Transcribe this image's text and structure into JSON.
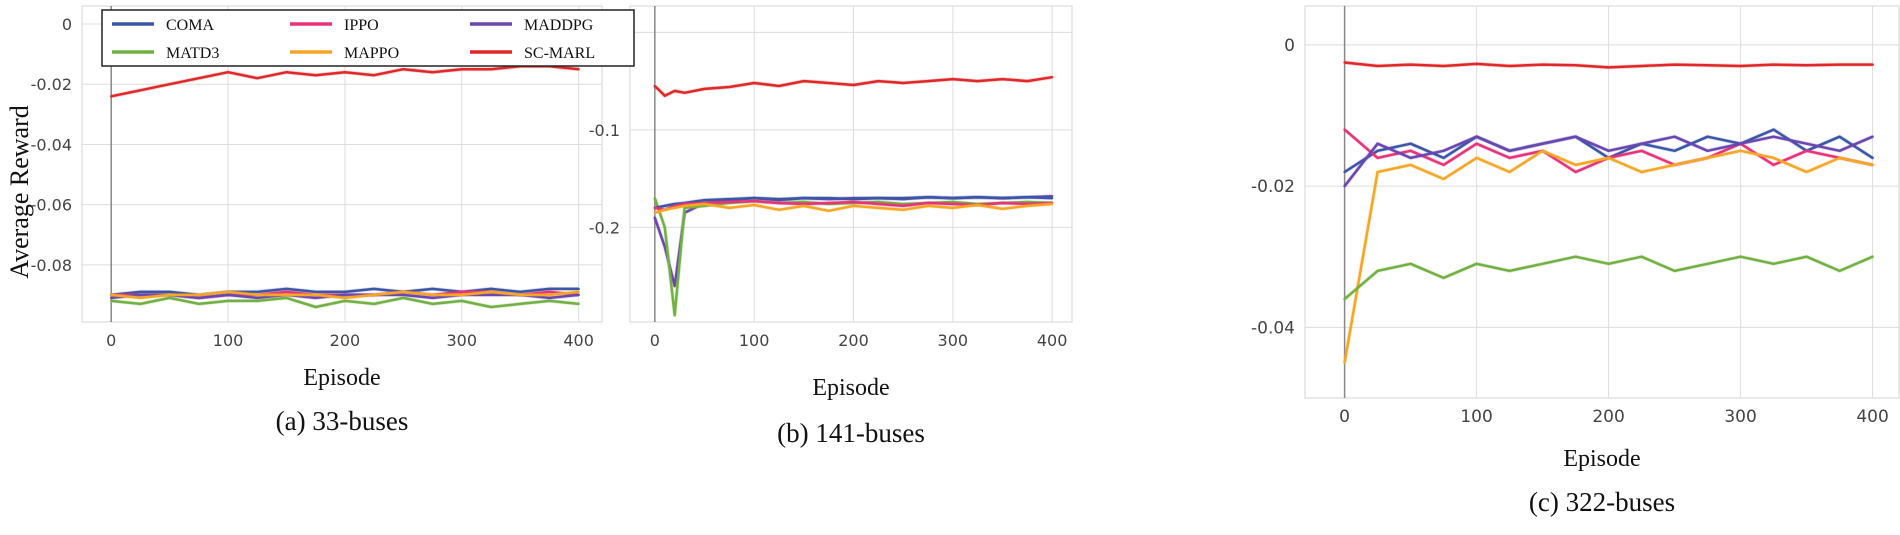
{
  "figure": {
    "ylabel": "Average Reward",
    "legend": {
      "placement": "top-left of panel (a)",
      "entries": [
        {
          "name": "COMA",
          "color": "#3a56a5"
        },
        {
          "name": "IPPO",
          "color": "#e8327a"
        },
        {
          "name": "MADDPG",
          "color": "#6a46b0"
        },
        {
          "name": "MATD3",
          "color": "#72b043"
        },
        {
          "name": "MAPPO",
          "color": "#f5a623"
        },
        {
          "name": "SC-MARL",
          "color": "#e02828"
        }
      ]
    }
  },
  "chart_data": [
    {
      "type": "line",
      "caption": "(a) 33-buses",
      "xlabel": "Episode",
      "ylabel": "Average Reward",
      "xlim": [
        -25,
        420
      ],
      "ylim": [
        -0.099,
        0.006
      ],
      "xticks": [
        0,
        100,
        200,
        300,
        400
      ],
      "yticks": [
        0,
        -0.02,
        -0.04,
        -0.06,
        -0.08
      ],
      "ytick_labels": [
        "0",
        "-0.02",
        "-0.04",
        "-0.06",
        "-0.08"
      ],
      "grid": true,
      "x": [
        0,
        25,
        50,
        75,
        100,
        125,
        150,
        175,
        200,
        225,
        250,
        275,
        300,
        325,
        350,
        375,
        400
      ],
      "series": [
        {
          "name": "SC-MARL",
          "color": "#e02828",
          "values": [
            -0.024,
            -0.022,
            -0.02,
            -0.018,
            -0.016,
            -0.018,
            -0.016,
            -0.017,
            -0.016,
            -0.017,
            -0.015,
            -0.016,
            -0.015,
            -0.015,
            -0.014,
            -0.014,
            -0.015
          ]
        },
        {
          "name": "COMA",
          "color": "#3a56a5",
          "values": [
            -0.09,
            -0.089,
            -0.089,
            -0.09,
            -0.089,
            -0.089,
            -0.088,
            -0.089,
            -0.089,
            -0.088,
            -0.089,
            -0.088,
            -0.089,
            -0.088,
            -0.089,
            -0.088,
            -0.088
          ]
        },
        {
          "name": "IPPO",
          "color": "#e8327a",
          "values": [
            -0.09,
            -0.09,
            -0.09,
            -0.091,
            -0.09,
            -0.09,
            -0.089,
            -0.09,
            -0.09,
            -0.09,
            -0.089,
            -0.09,
            -0.089,
            -0.089,
            -0.09,
            -0.089,
            -0.09
          ]
        },
        {
          "name": "MADDPG",
          "color": "#6a46b0",
          "values": [
            -0.091,
            -0.09,
            -0.09,
            -0.091,
            -0.09,
            -0.091,
            -0.09,
            -0.091,
            -0.09,
            -0.09,
            -0.09,
            -0.091,
            -0.09,
            -0.09,
            -0.09,
            -0.091,
            -0.09
          ]
        },
        {
          "name": "MAPPO",
          "color": "#f5a623",
          "values": [
            -0.09,
            -0.091,
            -0.09,
            -0.09,
            -0.089,
            -0.09,
            -0.09,
            -0.09,
            -0.091,
            -0.09,
            -0.089,
            -0.09,
            -0.09,
            -0.089,
            -0.09,
            -0.09,
            -0.089
          ]
        },
        {
          "name": "MATD3",
          "color": "#72b043",
          "values": [
            -0.092,
            -0.093,
            -0.091,
            -0.093,
            -0.092,
            -0.092,
            -0.091,
            -0.094,
            -0.092,
            -0.093,
            -0.091,
            -0.093,
            -0.092,
            -0.094,
            -0.093,
            -0.092,
            -0.093
          ]
        }
      ]
    },
    {
      "type": "line",
      "caption": "(b) 141-buses",
      "xlabel": "Episode",
      "ylabel": "",
      "xlim": [
        -25,
        420
      ],
      "ylim": [
        -0.297,
        0.027
      ],
      "xticks": [
        0,
        100,
        200,
        300,
        400
      ],
      "yticks": [
        0,
        -0.1,
        -0.2
      ],
      "ytick_labels": [
        "0",
        "-0.1",
        "-0.2"
      ],
      "grid": true,
      "x": [
        0,
        10,
        20,
        30,
        50,
        75,
        100,
        125,
        150,
        175,
        200,
        225,
        250,
        275,
        300,
        325,
        350,
        375,
        400
      ],
      "series": [
        {
          "name": "SC-MARL",
          "color": "#e02828",
          "values": [
            -0.055,
            -0.065,
            -0.06,
            -0.062,
            -0.058,
            -0.056,
            -0.052,
            -0.055,
            -0.05,
            -0.052,
            -0.054,
            -0.05,
            -0.052,
            -0.05,
            -0.048,
            -0.05,
            -0.048,
            -0.05,
            -0.046
          ]
        },
        {
          "name": "MADDPG",
          "color": "#6a46b0",
          "values": [
            -0.19,
            -0.22,
            -0.26,
            -0.185,
            -0.175,
            -0.172,
            -0.17,
            -0.172,
            -0.17,
            -0.171,
            -0.17,
            -0.17,
            -0.171,
            -0.169,
            -0.17,
            -0.169,
            -0.17,
            -0.169,
            -0.168
          ]
        },
        {
          "name": "MATD3",
          "color": "#72b043",
          "values": [
            -0.17,
            -0.2,
            -0.29,
            -0.18,
            -0.178,
            -0.175,
            -0.173,
            -0.175,
            -0.174,
            -0.176,
            -0.175,
            -0.174,
            -0.176,
            -0.175,
            -0.174,
            -0.176,
            -0.175,
            -0.174,
            -0.175
          ]
        },
        {
          "name": "COMA",
          "color": "#3a56a5",
          "values": [
            -0.18,
            -0.178,
            -0.176,
            -0.175,
            -0.172,
            -0.171,
            -0.17,
            -0.171,
            -0.17,
            -0.17,
            -0.171,
            -0.17,
            -0.17,
            -0.169,
            -0.17,
            -0.169,
            -0.17,
            -0.169,
            -0.17
          ]
        },
        {
          "name": "IPPO",
          "color": "#e8327a",
          "values": [
            -0.18,
            -0.182,
            -0.178,
            -0.176,
            -0.175,
            -0.174,
            -0.173,
            -0.175,
            -0.176,
            -0.175,
            -0.174,
            -0.176,
            -0.178,
            -0.175,
            -0.176,
            -0.177,
            -0.175,
            -0.176,
            -0.175
          ]
        },
        {
          "name": "MAPPO",
          "color": "#f5a623",
          "values": [
            -0.185,
            -0.182,
            -0.18,
            -0.178,
            -0.176,
            -0.18,
            -0.177,
            -0.182,
            -0.178,
            -0.183,
            -0.178,
            -0.18,
            -0.182,
            -0.178,
            -0.18,
            -0.177,
            -0.181,
            -0.178,
            -0.176
          ]
        }
      ]
    },
    {
      "type": "line",
      "caption": "(c) 322-buses",
      "xlabel": "Episode",
      "ylabel": "",
      "xlim": [
        -30,
        420
      ],
      "ylim": [
        -0.05,
        0.0055
      ],
      "xticks": [
        0,
        100,
        200,
        300,
        400
      ],
      "yticks": [
        0,
        -0.02,
        -0.04
      ],
      "ytick_labels": [
        "0",
        "-0.02",
        "-0.04"
      ],
      "grid": true,
      "x": [
        0,
        25,
        50,
        75,
        100,
        125,
        150,
        175,
        200,
        225,
        250,
        275,
        300,
        325,
        350,
        375,
        400
      ],
      "series": [
        {
          "name": "SC-MARL",
          "color": "#e02828",
          "values": [
            -0.0025,
            -0.003,
            -0.0028,
            -0.003,
            -0.0027,
            -0.003,
            -0.0028,
            -0.0029,
            -0.0032,
            -0.003,
            -0.0028,
            -0.0029,
            -0.003,
            -0.0028,
            -0.0029,
            -0.0028,
            -0.0028
          ]
        },
        {
          "name": "COMA",
          "color": "#3a56a5",
          "values": [
            -0.018,
            -0.015,
            -0.014,
            -0.016,
            -0.013,
            -0.015,
            -0.014,
            -0.013,
            -0.016,
            -0.014,
            -0.015,
            -0.013,
            -0.014,
            -0.012,
            -0.015,
            -0.013,
            -0.016
          ]
        },
        {
          "name": "IPPO",
          "color": "#e8327a",
          "values": [
            -0.012,
            -0.016,
            -0.015,
            -0.017,
            -0.014,
            -0.016,
            -0.015,
            -0.018,
            -0.016,
            -0.015,
            -0.017,
            -0.016,
            -0.014,
            -0.017,
            -0.015,
            -0.016,
            -0.017
          ]
        },
        {
          "name": "MADDPG",
          "color": "#6a46b0",
          "values": [
            -0.02,
            -0.014,
            -0.016,
            -0.015,
            -0.013,
            -0.015,
            -0.014,
            -0.013,
            -0.015,
            -0.014,
            -0.013,
            -0.015,
            -0.014,
            -0.013,
            -0.014,
            -0.015,
            -0.013
          ]
        },
        {
          "name": "MAPPO",
          "color": "#f5a623",
          "values": [
            -0.045,
            -0.018,
            -0.017,
            -0.019,
            -0.016,
            -0.018,
            -0.015,
            -0.017,
            -0.016,
            -0.018,
            -0.017,
            -0.016,
            -0.015,
            -0.016,
            -0.018,
            -0.016,
            -0.017
          ]
        },
        {
          "name": "MATD3",
          "color": "#72b043",
          "values": [
            -0.036,
            -0.032,
            -0.031,
            -0.033,
            -0.031,
            -0.032,
            -0.031,
            -0.03,
            -0.031,
            -0.03,
            -0.032,
            -0.031,
            -0.03,
            -0.031,
            -0.03,
            -0.032,
            -0.03
          ]
        }
      ]
    }
  ]
}
